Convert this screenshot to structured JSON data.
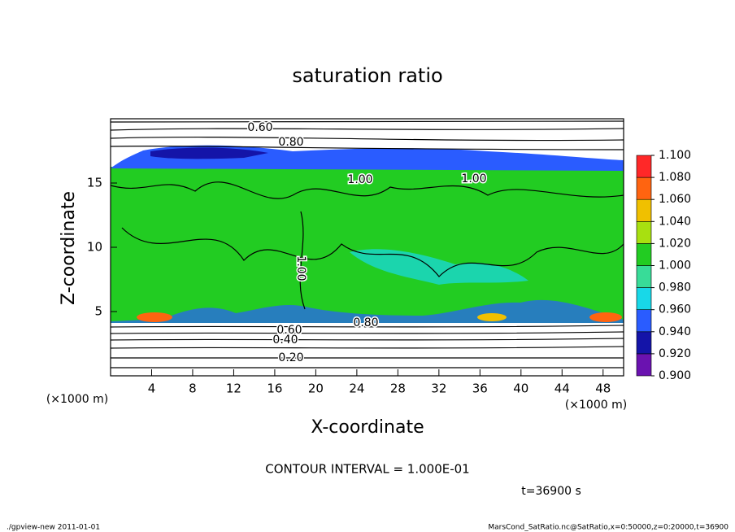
{
  "chart_data": {
    "type": "contour",
    "title": "saturation ratio",
    "x_label": "X-coordinate",
    "y_label": "Z-coordinate",
    "x_unit": "(×1000 m)",
    "y_unit": "(×1000 m)",
    "xlim": [
      0,
      50
    ],
    "xticks": [
      4,
      8,
      12,
      16,
      20,
      24,
      28,
      32,
      36,
      40,
      44,
      48
    ],
    "ylim": [
      0,
      20
    ],
    "yticks": [
      5,
      10,
      15
    ],
    "colorbar": {
      "ticks": [
        {
          "value": 0.9,
          "label": "0.900"
        },
        {
          "value": 0.92,
          "label": "0.920"
        },
        {
          "value": 0.94,
          "label": "0.940"
        },
        {
          "value": 0.96,
          "label": "0.960"
        },
        {
          "value": 0.98,
          "label": "0.980"
        },
        {
          "value": 1.0,
          "label": "1.000"
        },
        {
          "value": 1.02,
          "label": "1.020"
        },
        {
          "value": 1.04,
          "label": "1.040"
        },
        {
          "value": 1.06,
          "label": "1.060"
        },
        {
          "value": 1.08,
          "label": "1.080"
        },
        {
          "value": 1.1,
          "label": "1.100"
        }
      ],
      "colors": [
        "#6a12b0",
        "#1414a8",
        "#2a5cff",
        "#18d8e8",
        "#38dc98",
        "#22cc22",
        "#a8e010",
        "#f0c000",
        "#ff6410",
        "#ff2828",
        "#ff9090"
      ]
    },
    "contour_labels": [
      "0.60",
      "0.80",
      "1.00",
      "1.00",
      "1.00",
      "0.80",
      "0.60",
      "0.40",
      "0.20"
    ],
    "contour_interval": "CONTOUR INTERVAL = 1.000E-01",
    "time_label": "t=36900 s",
    "footer_left": "./gpview-new   2011-01-01",
    "footer_right": "MarsCond_SatRatio.nc@SatRatio,x=0:50000,z=0:20000,t=36900"
  }
}
